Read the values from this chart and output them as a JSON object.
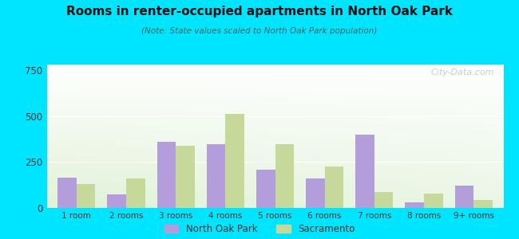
{
  "title": "Rooms in renter-occupied apartments in North Oak Park",
  "subtitle": "(Note: State values scaled to North Oak Park population)",
  "categories": [
    "1 room",
    "2 rooms",
    "3 rooms",
    "4 rooms",
    "5 rooms",
    "6 rooms",
    "7 rooms",
    "8 rooms",
    "9+ rooms"
  ],
  "north_oak_park": [
    165,
    75,
    360,
    345,
    210,
    160,
    400,
    30,
    120
  ],
  "sacramento": [
    130,
    160,
    340,
    510,
    345,
    225,
    85,
    80,
    45
  ],
  "nop_color": "#b39ddb",
  "sac_color": "#c5d99a",
  "ylim": [
    0,
    780
  ],
  "yticks": [
    0,
    250,
    500,
    750
  ],
  "background_outer": "#00e5ff",
  "watermark": "City-Data.com",
  "bar_width": 0.38,
  "legend_nop": "North Oak Park",
  "legend_sac": "Sacramento"
}
